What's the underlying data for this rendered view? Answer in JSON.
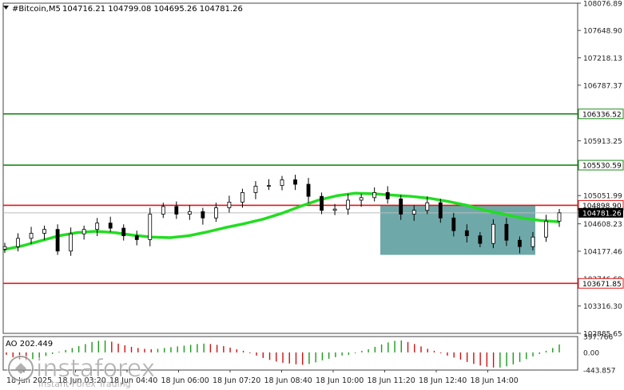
{
  "header": {
    "symbol": "#Bitcoin,M5",
    "ohlc": "104716.21 104799.08 104695.26 104781.26"
  },
  "chart_data": [
    {
      "type": "candlestick",
      "ylim": [
        102885.65,
        108076.89
      ],
      "y_ticks": [
        "108076.89",
        "107648.90",
        "107218.13",
        "106787.37",
        "106336.52",
        "105913.25",
        "105530.59",
        "105051.99",
        "104898.90",
        "104781.26",
        "104608.23",
        "104177.46",
        "103746.69",
        "103671.85",
        "103316.30",
        "102885.65"
      ],
      "x_ticks": [
        "18 Jun 2025",
        "18 Jun 03:20",
        "18 Jun 04:40",
        "18 Jun 06:00",
        "18 Jun 07:20",
        "18 Jun 08:40",
        "18 Jun 10:00",
        "18 Jun 11:20",
        "18 Jun 12:40",
        "18 Jun 14:00"
      ],
      "last_price": "104781.26",
      "horizontal_lines": [
        {
          "price": 106336.52,
          "label": "106336.52",
          "color": "#1a8a1a"
        },
        {
          "price": 105530.59,
          "label": "105530.59",
          "color": "#1a8a1a"
        },
        {
          "price": 104898.9,
          "label": "104898.90",
          "color": "#e01818"
        },
        {
          "price": 103671.85,
          "label": "103671.85",
          "color": "#e01818"
        }
      ],
      "moving_average_color": "#22dd22",
      "moving_average": [
        104200,
        104260,
        104340,
        104420,
        104470,
        104490,
        104470,
        104430,
        104400,
        104390,
        104420,
        104480,
        104550,
        104610,
        104680,
        104770,
        104880,
        104980,
        105050,
        105090,
        105080,
        105060,
        105040,
        105010,
        104960,
        104900,
        104820,
        104760,
        104700,
        104660,
        104640
      ],
      "close": [
        104250,
        104380,
        104460,
        104520,
        104180,
        104450,
        104520,
        104620,
        104540,
        104420,
        104360,
        104760,
        104880,
        104760,
        104800,
        104700,
        104860,
        104950,
        105100,
        105200,
        105210,
        105300,
        105230,
        105040,
        104820,
        104840,
        104980,
        105020,
        105100,
        105000,
        104760,
        104820,
        104940,
        104700,
        104500,
        104420,
        104300,
        104600,
        104350,
        104250,
        104400,
        104650,
        104781.26
      ],
      "zone": {
        "color": "#5f9ea0",
        "top": 104898.9,
        "bottom": 104120
      }
    },
    {
      "type": "histogram",
      "name": "AO",
      "value_label": "202.449",
      "ylim": [
        -443.857,
        397.766
      ],
      "y_ticks": [
        "397.766",
        "0.00",
        "-443.857"
      ],
      "values": [
        -60,
        -120,
        -170,
        -190,
        -170,
        -140,
        -90,
        -40,
        20,
        60,
        110,
        160,
        210,
        260,
        290,
        300,
        270,
        220,
        180,
        140,
        110,
        90,
        80,
        90,
        110,
        130,
        150,
        170,
        190,
        210,
        220,
        210,
        190,
        160,
        120,
        80,
        40,
        -20,
        -80,
        -140,
        -190,
        -230,
        -260,
        -280,
        -300,
        -310,
        -290,
        -250,
        -200,
        -160,
        -120,
        -80,
        -60,
        -20,
        40,
        80,
        140,
        200,
        250,
        290,
        300,
        260,
        210,
        150,
        90,
        40,
        -20,
        -80,
        -130,
        -180,
        -240,
        -290,
        -330,
        -360,
        -380,
        -380,
        -350,
        -300,
        -240,
        -170,
        -100,
        -40,
        40,
        110,
        200
      ],
      "colors": {
        "up": "#1a9a1a",
        "down": "#d01010"
      }
    }
  ],
  "watermark": {
    "brand": "instaforex",
    "tagline": "Instant Forex Trading"
  }
}
